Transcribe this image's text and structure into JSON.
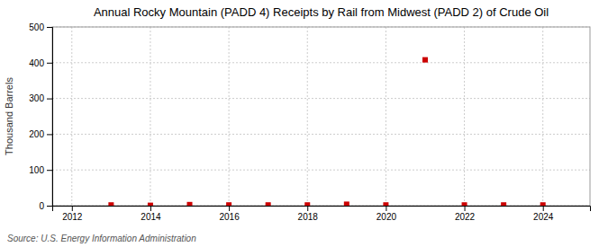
{
  "chart_data": {
    "type": "scatter",
    "title": "Annual Rocky Mountain (PADD 4) Receipts by Rail from Midwest (PADD 2) of Crude Oil",
    "ylabel": "Thousand Barrels",
    "source": "Source: U.S. Energy Information Administration",
    "x": [
      2013,
      2014,
      2015,
      2016,
      2017,
      2018,
      2019,
      2020,
      2021,
      2022,
      2023,
      2024
    ],
    "values": [
      2,
      1,
      3,
      2,
      2,
      2,
      4,
      2,
      408,
      2,
      2,
      2
    ],
    "color": "#cc0000",
    "marker": "square",
    "xlim": [
      2011.5,
      2025.2
    ],
    "ylim": [
      0,
      500
    ],
    "xticks": [
      2012,
      2014,
      2016,
      2018,
      2020,
      2022,
      2024
    ],
    "yticks": [
      0,
      100,
      200,
      300,
      400,
      500
    ],
    "grid": true
  }
}
